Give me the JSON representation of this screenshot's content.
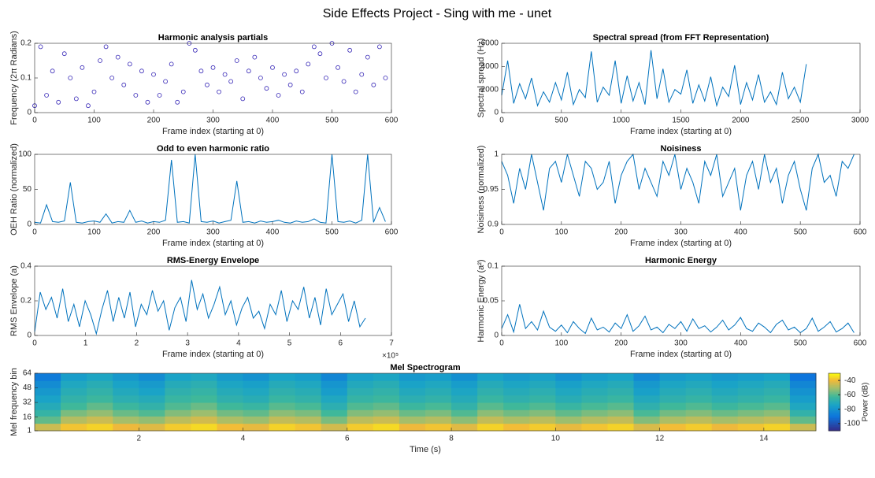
{
  "figure_title": "Side Effects Project - Sing with me - unet",
  "chart_data": [
    {
      "type": "scatter",
      "title": "Harmonic analysis partials",
      "xlabel": "Frame index (starting at 0)",
      "ylabel": "Frequency (2π Radians)",
      "color": "#3a2bb8",
      "xlim": [
        0,
        600
      ],
      "ylim": [
        0,
        0.2
      ],
      "xticks": [
        0,
        100,
        200,
        300,
        400,
        500,
        600
      ],
      "yticks": [
        0,
        0.1,
        0.2
      ],
      "x": [
        0,
        10,
        20,
        30,
        40,
        50,
        60,
        70,
        80,
        90,
        100,
        110,
        120,
        130,
        140,
        150,
        160,
        170,
        180,
        190,
        200,
        210,
        220,
        230,
        240,
        250,
        260,
        270,
        280,
        290,
        300,
        310,
        320,
        330,
        340,
        350,
        360,
        370,
        380,
        390,
        400,
        410,
        420,
        430,
        440,
        450,
        460,
        470,
        480,
        490,
        500,
        510,
        520,
        530,
        540,
        550,
        560,
        570,
        580,
        590
      ],
      "values": [
        0.02,
        0.19,
        0.05,
        0.12,
        0.03,
        0.17,
        0.1,
        0.04,
        0.13,
        0.02,
        0.06,
        0.15,
        0.19,
        0.1,
        0.16,
        0.08,
        0.14,
        0.05,
        0.12,
        0.03,
        0.11,
        0.05,
        0.09,
        0.14,
        0.03,
        0.06,
        0.2,
        0.18,
        0.12,
        0.08,
        0.13,
        0.06,
        0.11,
        0.09,
        0.15,
        0.04,
        0.12,
        0.16,
        0.1,
        0.07,
        0.13,
        0.05,
        0.11,
        0.08,
        0.12,
        0.06,
        0.14,
        0.19,
        0.17,
        0.1,
        0.2,
        0.13,
        0.09,
        0.18,
        0.06,
        0.11,
        0.16,
        0.08,
        0.19,
        0.1
      ]
    },
    {
      "type": "line",
      "title": "Spectral spread (from FFT Representation)",
      "xlabel": "Frame index (starting at 0)",
      "ylabel": "Spectral spread (Hz)",
      "color": "#0072bd",
      "xlim": [
        0,
        3000
      ],
      "ylim": [
        0,
        6000
      ],
      "xticks": [
        0,
        500,
        1000,
        1500,
        2000,
        2500,
        3000
      ],
      "yticks": [
        0,
        2000,
        4000,
        6000
      ],
      "x": [
        0,
        50,
        100,
        150,
        200,
        250,
        300,
        350,
        400,
        450,
        500,
        550,
        600,
        650,
        700,
        750,
        800,
        850,
        900,
        950,
        1000,
        1050,
        1100,
        1150,
        1200,
        1250,
        1300,
        1350,
        1400,
        1450,
        1500,
        1550,
        1600,
        1650,
        1700,
        1750,
        1800,
        1850,
        1900,
        1950,
        2000,
        2050,
        2100,
        2150,
        2200,
        2250,
        2300,
        2350,
        2400,
        2450,
        2500,
        2550
      ],
      "values": [
        1500,
        4500,
        800,
        2500,
        1200,
        3000,
        600,
        1800,
        900,
        2600,
        1100,
        3500,
        700,
        2000,
        1300,
        5300,
        900,
        2200,
        1500,
        4500,
        800,
        3200,
        1000,
        2600,
        700,
        5400,
        1200,
        3800,
        900,
        2000,
        1600,
        3700,
        800,
        2400,
        1000,
        3100,
        600,
        2200,
        1400,
        4100,
        700,
        2600,
        1100,
        3300,
        900,
        1800,
        700,
        3500,
        1200,
        2200,
        900,
        4200
      ]
    },
    {
      "type": "line",
      "title": "Odd to even harmonic ratio",
      "xlabel": "Frame index (starting at 0)",
      "ylabel": "OEH Ratio (normalized)",
      "color": "#0072bd",
      "xlim": [
        0,
        600
      ],
      "ylim": [
        0,
        100
      ],
      "xticks": [
        0,
        100,
        200,
        300,
        400,
        500,
        600
      ],
      "yticks": [
        0,
        50,
        100
      ],
      "x": [
        0,
        10,
        20,
        30,
        40,
        50,
        60,
        70,
        80,
        90,
        100,
        110,
        120,
        130,
        140,
        150,
        160,
        170,
        180,
        190,
        200,
        210,
        220,
        230,
        240,
        250,
        260,
        270,
        280,
        290,
        300,
        310,
        320,
        330,
        340,
        350,
        360,
        370,
        380,
        390,
        400,
        410,
        420,
        430,
        440,
        450,
        460,
        470,
        480,
        490,
        500,
        510,
        520,
        530,
        540,
        550,
        560,
        570,
        580,
        590
      ],
      "values": [
        3,
        2,
        28,
        4,
        3,
        5,
        60,
        3,
        2,
        4,
        5,
        3,
        15,
        2,
        4,
        3,
        20,
        3,
        5,
        2,
        4,
        3,
        6,
        92,
        3,
        4,
        2,
        100,
        4,
        3,
        5,
        2,
        4,
        6,
        62,
        3,
        4,
        2,
        5,
        3,
        4,
        6,
        3,
        2,
        5,
        3,
        4,
        8,
        3,
        2,
        100,
        4,
        3,
        5,
        2,
        6,
        100,
        3,
        24,
        4
      ]
    },
    {
      "type": "line",
      "title": "Noisiness",
      "xlabel": "Frame index (starting at 0)",
      "ylabel": "Noisiness (normalized)",
      "color": "#0072bd",
      "xlim": [
        0,
        600
      ],
      "ylim": [
        0.9,
        1
      ],
      "xticks": [
        0,
        100,
        200,
        300,
        400,
        500,
        600
      ],
      "yticks": [
        0.9,
        0.95,
        1
      ],
      "x": [
        0,
        10,
        20,
        30,
        40,
        50,
        60,
        70,
        80,
        90,
        100,
        110,
        120,
        130,
        140,
        150,
        160,
        170,
        180,
        190,
        200,
        210,
        220,
        230,
        240,
        250,
        260,
        270,
        280,
        290,
        300,
        310,
        320,
        330,
        340,
        350,
        360,
        370,
        380,
        390,
        400,
        410,
        420,
        430,
        440,
        450,
        460,
        470,
        480,
        490,
        500,
        510,
        520,
        530,
        540,
        550,
        560,
        570,
        580,
        590
      ],
      "values": [
        0.99,
        0.97,
        0.93,
        0.98,
        0.95,
        1,
        0.96,
        0.92,
        0.98,
        0.99,
        0.96,
        1,
        0.97,
        0.94,
        0.99,
        0.98,
        0.95,
        0.96,
        0.99,
        0.93,
        0.97,
        0.99,
        1,
        0.95,
        0.98,
        0.96,
        0.94,
        0.99,
        0.97,
        1,
        0.95,
        0.98,
        0.96,
        0.93,
        0.99,
        0.97,
        1,
        0.94,
        0.96,
        0.98,
        0.92,
        0.97,
        0.99,
        0.95,
        1,
        0.96,
        0.98,
        0.93,
        0.97,
        0.99,
        0.95,
        0.92,
        0.98,
        1,
        0.96,
        0.97,
        0.94,
        0.99,
        0.98,
        1
      ]
    },
    {
      "type": "line",
      "title": "RMS-Energy Envelope",
      "xlabel": "Frame index (starting at 0)",
      "ylabel": "RMS Envelope (a)",
      "color": "#0072bd",
      "x_multiplier": "×10⁵",
      "xlim": [
        0,
        700000
      ],
      "ylim": [
        0,
        0.4
      ],
      "xticks": [
        0,
        {
          "value": 100000,
          "label": "1"
        },
        {
          "value": 200000,
          "label": "2"
        },
        {
          "value": 300000,
          "label": "3"
        },
        {
          "value": 400000,
          "label": "4"
        },
        {
          "value": 500000,
          "label": "5"
        },
        {
          "value": 600000,
          "label": "6"
        },
        {
          "value": 700000,
          "label": "7"
        }
      ],
      "yticks": [
        0,
        0.2,
        0.4
      ],
      "x": [
        0,
        11000,
        22000,
        33000,
        44000,
        55000,
        66000,
        77000,
        88000,
        99000,
        110000,
        121000,
        132000,
        143000,
        154000,
        165000,
        176000,
        187000,
        198000,
        209000,
        220000,
        231000,
        242000,
        253000,
        264000,
        275000,
        286000,
        297000,
        308000,
        319000,
        330000,
        341000,
        352000,
        363000,
        374000,
        385000,
        396000,
        407000,
        418000,
        429000,
        440000,
        451000,
        462000,
        473000,
        484000,
        495000,
        506000,
        517000,
        528000,
        539000,
        550000,
        561000,
        572000,
        583000,
        594000,
        605000,
        616000,
        627000,
        638000,
        649000
      ],
      "values": [
        0.02,
        0.25,
        0.15,
        0.22,
        0.1,
        0.27,
        0.08,
        0.18,
        0.05,
        0.2,
        0.12,
        0.01,
        0.15,
        0.26,
        0.08,
        0.22,
        0.1,
        0.25,
        0.05,
        0.18,
        0.12,
        0.26,
        0.14,
        0.2,
        0.03,
        0.16,
        0.22,
        0.08,
        0.32,
        0.15,
        0.24,
        0.1,
        0.18,
        0.28,
        0.12,
        0.2,
        0.06,
        0.16,
        0.22,
        0.1,
        0.14,
        0.04,
        0.18,
        0.12,
        0.26,
        0.08,
        0.2,
        0.15,
        0.28,
        0.1,
        0.22,
        0.06,
        0.27,
        0.12,
        0.18,
        0.24,
        0.08,
        0.2,
        0.05,
        0.1
      ]
    },
    {
      "type": "line",
      "title": "Harmonic Energy",
      "xlabel": "Frame index (starting at 0)",
      "ylabel": "Harmonic Energy (a²)",
      "color": "#0072bd",
      "xlim": [
        0,
        600
      ],
      "ylim": [
        0,
        0.1
      ],
      "xticks": [
        0,
        100,
        200,
        300,
        400,
        500,
        600
      ],
      "yticks": [
        0,
        0.05,
        0.1
      ],
      "x": [
        0,
        10,
        20,
        30,
        40,
        50,
        60,
        70,
        80,
        90,
        100,
        110,
        120,
        130,
        140,
        150,
        160,
        170,
        180,
        190,
        200,
        210,
        220,
        230,
        240,
        250,
        260,
        270,
        280,
        290,
        300,
        310,
        320,
        330,
        340,
        350,
        360,
        370,
        380,
        390,
        400,
        410,
        420,
        430,
        440,
        450,
        460,
        470,
        480,
        490,
        500,
        510,
        520,
        530,
        540,
        550,
        560,
        570,
        580,
        590
      ],
      "values": [
        0.01,
        0.03,
        0.005,
        0.045,
        0.01,
        0.02,
        0.008,
        0.035,
        0.012,
        0.006,
        0.015,
        0.004,
        0.02,
        0.01,
        0.003,
        0.025,
        0.008,
        0.012,
        0.005,
        0.018,
        0.01,
        0.03,
        0.006,
        0.014,
        0.028,
        0.008,
        0.012,
        0.004,
        0.016,
        0.01,
        0.02,
        0.006,
        0.024,
        0.01,
        0.014,
        0.005,
        0.012,
        0.022,
        0.008,
        0.015,
        0.026,
        0.01,
        0.006,
        0.018,
        0.012,
        0.004,
        0.016,
        0.022,
        0.008,
        0.012,
        0.004,
        0.01,
        0.025,
        0.006,
        0.012,
        0.02,
        0.005,
        0.01,
        0.018,
        0.004
      ]
    },
    {
      "type": "heatmap",
      "title": "Mel Spectrogram",
      "xlabel": "Time (s)",
      "ylabel": "Mel frequency bin",
      "colorbar_label": "Power (dB)",
      "xlim": [
        0,
        15
      ],
      "ylim": [
        1,
        64
      ],
      "xticks": [
        2,
        4,
        6,
        8,
        10,
        12,
        14
      ],
      "yticks": [
        1,
        16,
        32,
        48,
        64
      ],
      "clim": [
        -110,
        -30
      ],
      "cticks": [
        -40,
        -60,
        -80,
        -100
      ],
      "x": [
        0.25,
        0.75,
        1.25,
        1.75,
        2.25,
        2.75,
        3.25,
        3.75,
        4.25,
        4.75,
        5.25,
        5.75,
        6.25,
        6.75,
        7.25,
        7.75,
        8.25,
        8.75,
        9.25,
        9.75,
        10.25,
        10.75,
        11.25,
        11.75,
        12.25,
        12.75,
        13.25,
        13.75,
        14.25,
        14.75
      ],
      "y": [
        5,
        13,
        21,
        28,
        36,
        44,
        52,
        60
      ],
      "values": [
        [
          -45,
          -38,
          -36,
          -40,
          -42,
          -37,
          -35,
          -39,
          -41,
          -36,
          -38,
          -44,
          -37,
          -35,
          -40,
          -38,
          -42,
          -36,
          -39,
          -37,
          -41,
          -38,
          -36,
          -43,
          -39,
          -37,
          -40,
          -38,
          -36,
          -45
        ],
        [
          -58,
          -48,
          -45,
          -50,
          -52,
          -47,
          -44,
          -49,
          -51,
          -46,
          -48,
          -55,
          -47,
          -45,
          -50,
          -48,
          -53,
          -46,
          -49,
          -47,
          -51,
          -48,
          -46,
          -54,
          -49,
          -47,
          -50,
          -48,
          -46,
          -58
        ],
        [
          -65,
          -55,
          -52,
          -57,
          -60,
          -54,
          -51,
          -56,
          -58,
          -53,
          -55,
          -62,
          -54,
          -52,
          -57,
          -55,
          -60,
          -53,
          -56,
          -54,
          -58,
          -55,
          -53,
          -61,
          -56,
          -54,
          -57,
          -55,
          -53,
          -66
        ],
        [
          -70,
          -62,
          -58,
          -63,
          -66,
          -60,
          -57,
          -62,
          -64,
          -59,
          -61,
          -68,
          -60,
          -58,
          -63,
          -61,
          -66,
          -59,
          -62,
          -60,
          -64,
          -61,
          -59,
          -67,
          -62,
          -60,
          -63,
          -61,
          -59,
          -72
        ],
        [
          -74,
          -66,
          -63,
          -68,
          -70,
          -64,
          -62,
          -67,
          -69,
          -64,
          -66,
          -72,
          -65,
          -63,
          -68,
          -66,
          -70,
          -64,
          -67,
          -65,
          -69,
          -66,
          -64,
          -71,
          -67,
          -65,
          -68,
          -66,
          -64,
          -76
        ],
        [
          -78,
          -69,
          -66,
          -71,
          -74,
          -67,
          -65,
          -70,
          -72,
          -67,
          -69,
          -76,
          -68,
          -66,
          -71,
          -69,
          -73,
          -67,
          -70,
          -68,
          -72,
          -69,
          -67,
          -75,
          -70,
          -68,
          -71,
          -69,
          -67,
          -80
        ],
        [
          -82,
          -72,
          -69,
          -74,
          -77,
          -70,
          -68,
          -73,
          -75,
          -70,
          -72,
          -79,
          -71,
          -69,
          -74,
          -72,
          -76,
          -70,
          -73,
          -71,
          -75,
          -72,
          -70,
          -78,
          -73,
          -71,
          -74,
          -72,
          -70,
          -84
        ],
        [
          -88,
          -76,
          -73,
          -78,
          -82,
          -74,
          -72,
          -77,
          -80,
          -74,
          -76,
          -84,
          -75,
          -73,
          -78,
          -76,
          -81,
          -74,
          -77,
          -75,
          -80,
          -76,
          -74,
          -83,
          -77,
          -75,
          -78,
          -76,
          -74,
          -90
        ]
      ]
    }
  ]
}
